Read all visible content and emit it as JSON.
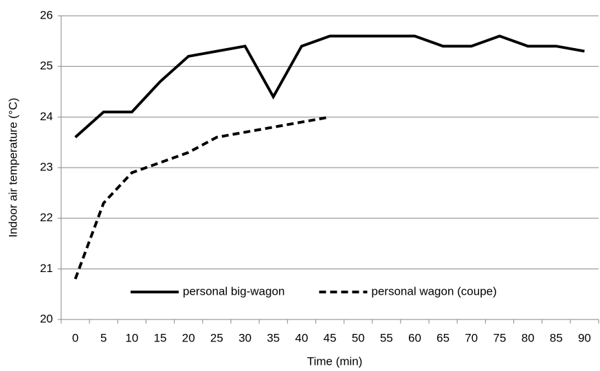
{
  "chart_data": {
    "type": "line",
    "x_label": "Time (min)",
    "y_label": "Indoor air temperature (°C)",
    "categories": [
      "0",
      "5",
      "10",
      "15",
      "20",
      "25",
      "30",
      "35",
      "40",
      "45",
      "50",
      "55",
      "60",
      "65",
      "70",
      "75",
      "80",
      "85",
      "90"
    ],
    "series": [
      {
        "name": "personal big-wagon",
        "color": "#000000",
        "line_style": "solid",
        "values": [
          23.6,
          24.1,
          24.1,
          24.7,
          25.2,
          25.3,
          25.4,
          24.4,
          25.4,
          25.6,
          25.6,
          25.6,
          25.6,
          25.4,
          25.4,
          25.6,
          25.4,
          25.4,
          25.3
        ]
      },
      {
        "name": "personal wagon (coupe)",
        "color": "#000000",
        "line_style": "dashed",
        "values": [
          20.8,
          22.3,
          22.9,
          23.1,
          23.3,
          23.6,
          23.7,
          23.8,
          23.9,
          24.0,
          null,
          null,
          null,
          null,
          null,
          null,
          null,
          null,
          null
        ]
      }
    ],
    "ylim": [
      20,
      26
    ],
    "yticks": [
      20,
      21,
      22,
      23,
      24,
      25,
      26
    ],
    "grid": true,
    "legend": "bottom"
  }
}
